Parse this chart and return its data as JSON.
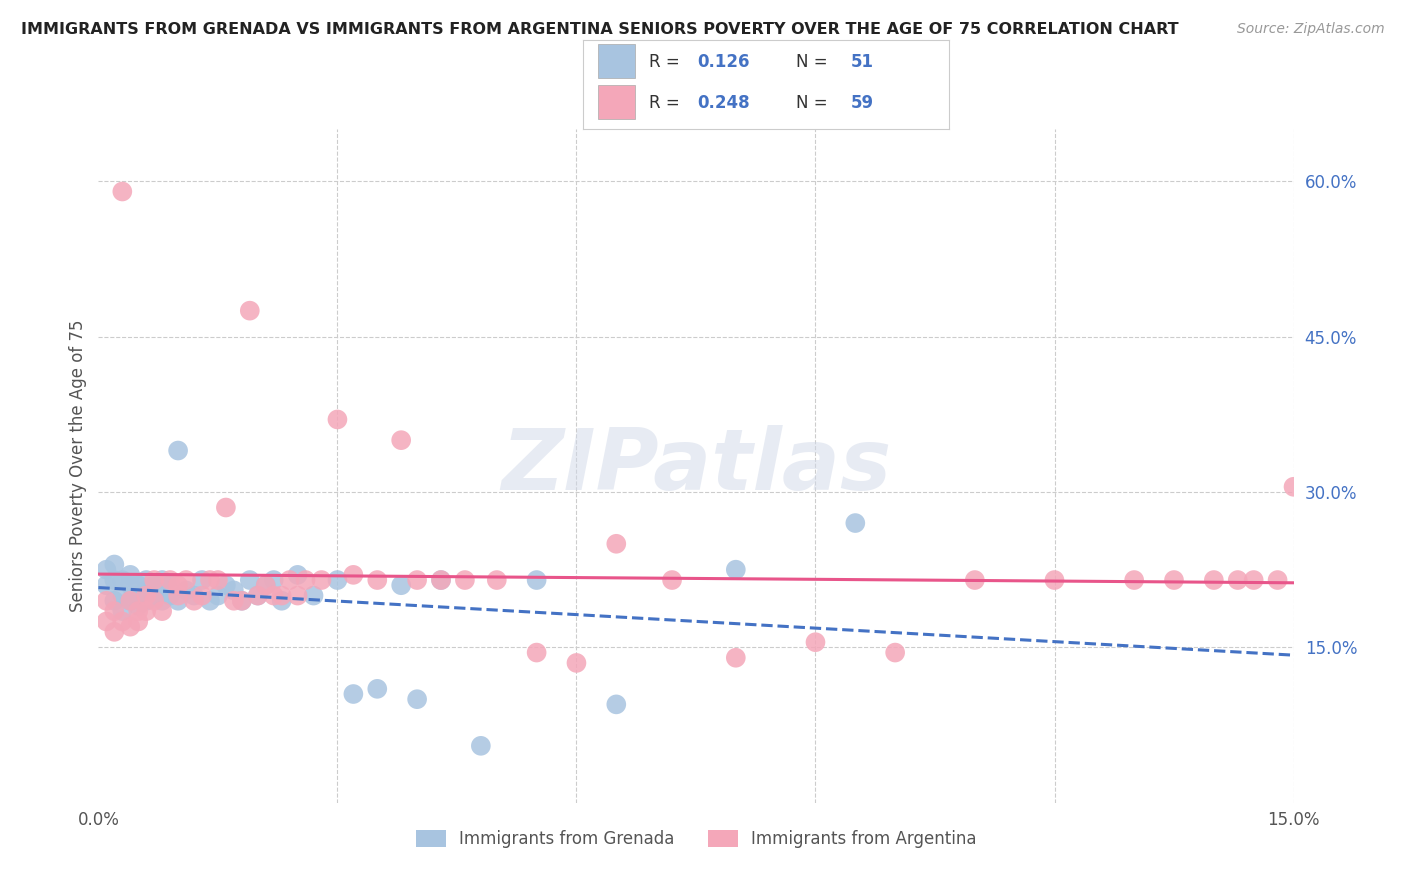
{
  "title": "IMMIGRANTS FROM GRENADA VS IMMIGRANTS FROM ARGENTINA SENIORS POVERTY OVER THE AGE OF 75 CORRELATION CHART",
  "source": "Source: ZipAtlas.com",
  "ylabel": "Seniors Poverty Over the Age of 75",
  "xlim": [
    0.0,
    0.15
  ],
  "ylim": [
    0.0,
    0.65
  ],
  "grenada_R": 0.126,
  "grenada_N": 51,
  "argentina_R": 0.248,
  "argentina_N": 59,
  "grenada_color": "#a8c4e0",
  "argentina_color": "#f4a7b9",
  "grenada_line_color": "#4472c4",
  "argentina_line_color": "#e8558a",
  "background_color": "#ffffff",
  "grenada_x": [
    0.001,
    0.001,
    0.002,
    0.002,
    0.002,
    0.003,
    0.003,
    0.003,
    0.004,
    0.004,
    0.004,
    0.005,
    0.005,
    0.005,
    0.006,
    0.006,
    0.006,
    0.007,
    0.007,
    0.008,
    0.008,
    0.009,
    0.009,
    0.01,
    0.01,
    0.011,
    0.012,
    0.013,
    0.014,
    0.015,
    0.016,
    0.017,
    0.018,
    0.019,
    0.02,
    0.021,
    0.022,
    0.023,
    0.025,
    0.027,
    0.03,
    0.032,
    0.035,
    0.038,
    0.04,
    0.043,
    0.048,
    0.055,
    0.065,
    0.08,
    0.095
  ],
  "grenada_y": [
    0.225,
    0.21,
    0.195,
    0.215,
    0.23,
    0.2,
    0.215,
    0.185,
    0.195,
    0.21,
    0.22,
    0.2,
    0.21,
    0.19,
    0.205,
    0.195,
    0.215,
    0.2,
    0.21,
    0.195,
    0.215,
    0.2,
    0.21,
    0.195,
    0.34,
    0.205,
    0.2,
    0.215,
    0.195,
    0.2,
    0.21,
    0.205,
    0.195,
    0.215,
    0.2,
    0.21,
    0.215,
    0.195,
    0.22,
    0.2,
    0.215,
    0.105,
    0.11,
    0.21,
    0.1,
    0.215,
    0.055,
    0.215,
    0.095,
    0.225,
    0.27
  ],
  "argentina_x": [
    0.001,
    0.001,
    0.002,
    0.002,
    0.003,
    0.003,
    0.004,
    0.004,
    0.005,
    0.005,
    0.006,
    0.006,
    0.007,
    0.007,
    0.008,
    0.009,
    0.01,
    0.01,
    0.011,
    0.012,
    0.013,
    0.014,
    0.015,
    0.016,
    0.017,
    0.018,
    0.019,
    0.02,
    0.021,
    0.022,
    0.023,
    0.024,
    0.025,
    0.026,
    0.028,
    0.03,
    0.032,
    0.035,
    0.038,
    0.04,
    0.043,
    0.046,
    0.05,
    0.055,
    0.06,
    0.065,
    0.072,
    0.08,
    0.09,
    0.1,
    0.11,
    0.12,
    0.13,
    0.135,
    0.14,
    0.143,
    0.145,
    0.148,
    0.15
  ],
  "argentina_y": [
    0.175,
    0.195,
    0.165,
    0.185,
    0.59,
    0.175,
    0.195,
    0.17,
    0.175,
    0.185,
    0.2,
    0.185,
    0.195,
    0.215,
    0.185,
    0.215,
    0.2,
    0.21,
    0.215,
    0.195,
    0.2,
    0.215,
    0.215,
    0.285,
    0.195,
    0.195,
    0.475,
    0.2,
    0.21,
    0.2,
    0.2,
    0.215,
    0.2,
    0.215,
    0.215,
    0.37,
    0.22,
    0.215,
    0.35,
    0.215,
    0.215,
    0.215,
    0.215,
    0.145,
    0.135,
    0.25,
    0.215,
    0.14,
    0.155,
    0.145,
    0.215,
    0.215,
    0.215,
    0.215,
    0.215,
    0.215,
    0.215,
    0.215,
    0.305
  ]
}
